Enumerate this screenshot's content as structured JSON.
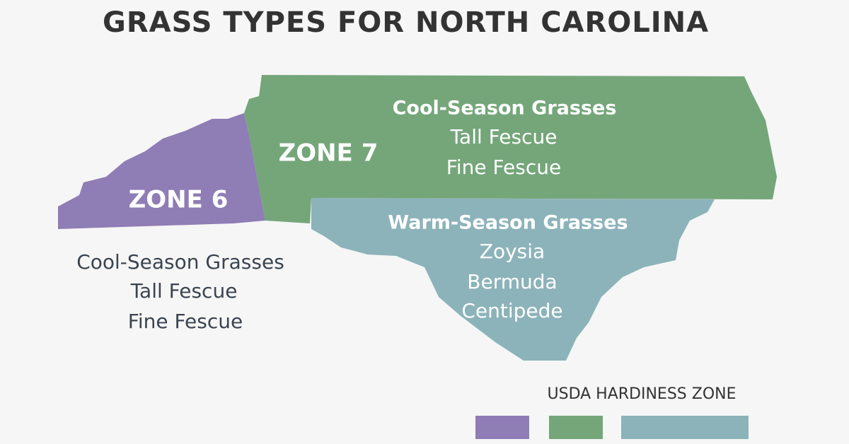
{
  "title": "GRASS TYPES FOR NORTH CAROLINA",
  "regions": [
    {
      "label": "ZONE 6",
      "heading": "Cool-Season Grasses",
      "items": [
        "Tall Fescue",
        "Fine Fescue"
      ]
    },
    {
      "label": "ZONE 7",
      "heading": "Cool-Season Grasses",
      "items": [
        "Tall Fescue",
        "Fine Fescue"
      ]
    },
    {
      "heading": "Warm-Season Grasses",
      "items": [
        "Zoysia",
        "Bermuda",
        "Centipede"
      ]
    }
  ],
  "legend": {
    "title": "USDA HARDINESS ZONE"
  }
}
